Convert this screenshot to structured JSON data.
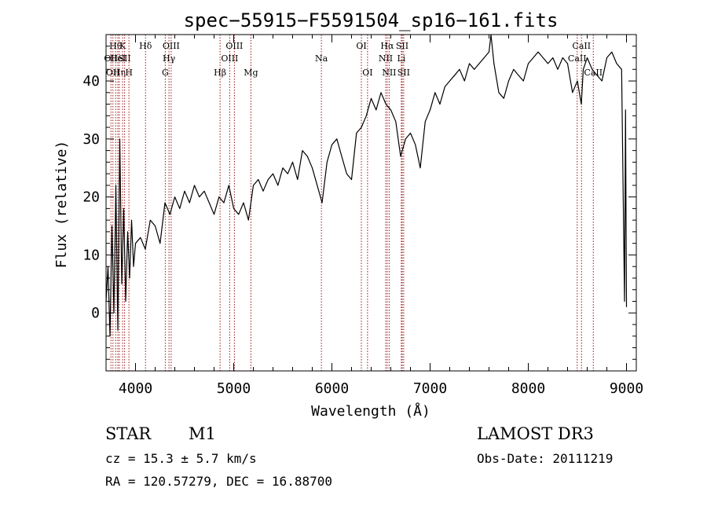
{
  "chart_data": {
    "type": "line",
    "title": "spec−55915−F5591504_sp16−161.fits",
    "xlabel": "Wavelength (Å)",
    "ylabel": "Flux (relative)",
    "xlim": [
      3700,
      9100
    ],
    "ylim": [
      -10,
      48
    ],
    "xticks": [
      4000,
      5000,
      6000,
      7000,
      8000,
      9000
    ],
    "yticks": [
      0,
      10,
      20,
      30,
      40
    ],
    "grid": false,
    "line_color": "#000000",
    "marker_color": "#a01010",
    "series": [
      {
        "name": "flux",
        "x": [
          3700,
          3720,
          3740,
          3760,
          3780,
          3800,
          3820,
          3840,
          3860,
          3880,
          3900,
          3920,
          3940,
          3960,
          3980,
          4000,
          4050,
          4100,
          4150,
          4200,
          4250,
          4300,
          4350,
          4400,
          4450,
          4500,
          4550,
          4600,
          4650,
          4700,
          4750,
          4800,
          4850,
          4900,
          4950,
          5000,
          5050,
          5100,
          5150,
          5200,
          5250,
          5300,
          5350,
          5400,
          5450,
          5500,
          5550,
          5600,
          5650,
          5700,
          5750,
          5800,
          5850,
          5900,
          5950,
          6000,
          6050,
          6100,
          6150,
          6200,
          6250,
          6300,
          6350,
          6400,
          6450,
          6500,
          6550,
          6600,
          6650,
          6700,
          6750,
          6800,
          6850,
          6900,
          6950,
          7000,
          7050,
          7100,
          7150,
          7200,
          7250,
          7300,
          7350,
          7400,
          7450,
          7500,
          7550,
          7600,
          7620,
          7650,
          7700,
          7750,
          7800,
          7850,
          7900,
          7950,
          8000,
          8050,
          8100,
          8150,
          8200,
          8250,
          8300,
          8350,
          8400,
          8450,
          8500,
          8540,
          8560,
          8600,
          8650,
          8700,
          8750,
          8800,
          8850,
          8900,
          8950,
          8980,
          8990,
          9000
        ],
        "y": [
          2,
          8,
          -4,
          15,
          0,
          22,
          -3,
          30,
          5,
          18,
          2,
          14,
          6,
          16,
          8,
          12,
          13,
          11,
          16,
          15,
          12,
          19,
          17,
          20,
          18,
          21,
          19,
          22,
          20,
          21,
          19,
          17,
          20,
          19,
          22,
          18,
          17,
          19,
          16,
          22,
          23,
          21,
          23,
          24,
          22,
          25,
          24,
          26,
          23,
          28,
          27,
          25,
          22,
          19,
          26,
          29,
          30,
          27,
          24,
          23,
          31,
          32,
          34,
          37,
          35,
          38,
          36,
          35,
          33,
          27,
          30,
          31,
          29,
          25,
          33,
          35,
          38,
          36,
          39,
          40,
          41,
          42,
          40,
          43,
          42,
          43,
          44,
          45,
          48,
          43,
          38,
          37,
          40,
          42,
          41,
          40,
          43,
          44,
          45,
          44,
          43,
          44,
          42,
          44,
          43,
          38,
          40,
          36,
          42,
          44,
          42,
          41,
          40,
          44,
          45,
          43,
          42,
          2,
          35,
          1
        ]
      }
    ],
    "line_markers": [
      {
        "wavelength": 3750,
        "label": "OII",
        "row": 2
      },
      {
        "wavelength": 3770,
        "label": "OII",
        "row": 3
      },
      {
        "wavelength": 3798,
        "label": "Hθ",
        "row": 1
      },
      {
        "wavelength": 3820,
        "label": "HeI",
        "row": 2
      },
      {
        "wavelength": 3835,
        "label": "Hη",
        "row": 3
      },
      {
        "wavelength": 3869,
        "label": "K",
        "row": 1
      },
      {
        "wavelength": 3889,
        "label": "SII",
        "row": 2
      },
      {
        "wavelength": 3933,
        "label": "H",
        "row": 3
      },
      {
        "wavelength": 4102,
        "label": "Hδ",
        "row": 1
      },
      {
        "wavelength": 4303,
        "label": "G",
        "row": 3
      },
      {
        "wavelength": 4341,
        "label": "Hγ",
        "row": 2
      },
      {
        "wavelength": 4363,
        "label": "OIII",
        "row": 1
      },
      {
        "wavelength": 4861,
        "label": "Hβ",
        "row": 3
      },
      {
        "wavelength": 4959,
        "label": "OIII",
        "row": 2
      },
      {
        "wavelength": 5007,
        "label": "OIII",
        "row": 1
      },
      {
        "wavelength": 5175,
        "label": "Mg",
        "row": 3
      },
      {
        "wavelength": 5893,
        "label": "Na",
        "row": 2
      },
      {
        "wavelength": 6300,
        "label": "OI",
        "row": 1
      },
      {
        "wavelength": 6363,
        "label": "OI",
        "row": 3
      },
      {
        "wavelength": 6548,
        "label": "NII",
        "row": 2
      },
      {
        "wavelength": 6563,
        "label": "Hα",
        "row": 1
      },
      {
        "wavelength": 6583,
        "label": "NII",
        "row": 3
      },
      {
        "wavelength": 6707,
        "label": "Li",
        "row": 2
      },
      {
        "wavelength": 6716,
        "label": "SII",
        "row": 1
      },
      {
        "wavelength": 6731,
        "label": "SII",
        "row": 3
      },
      {
        "wavelength": 8498,
        "label": "CaII",
        "row": 2
      },
      {
        "wavelength": 8542,
        "label": "CaII",
        "row": 1
      },
      {
        "wavelength": 8662,
        "label": "CaII",
        "row": 3
      }
    ]
  },
  "info": {
    "object_type": "STAR",
    "subclass": "M1",
    "survey": "LAMOST DR3",
    "redshift_text": "cz = 15.3 ± 5.7 km/s",
    "obs_date_text": "Obs-Date: 20111219",
    "coords_text": "RA = 120.57279, DEC =  16.88700"
  }
}
